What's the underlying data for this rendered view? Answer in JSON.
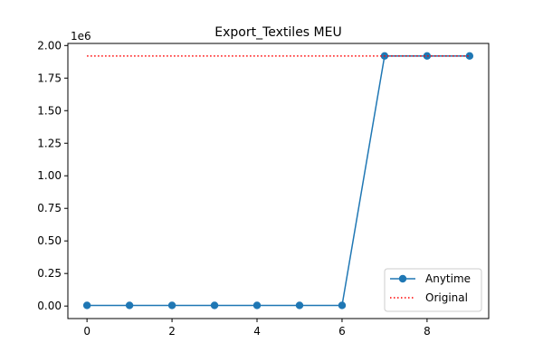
{
  "chart_data": {
    "type": "line",
    "title": "Export_Textiles MEU",
    "xlabel": "",
    "ylabel": "",
    "y_offset_label": "1e6",
    "xlim": [
      -0.45,
      9.45
    ],
    "ylim": [
      -0.096,
      2.016
    ],
    "x_ticks": [
      0,
      2,
      4,
      6,
      8
    ],
    "x_tick_labels": [
      "0",
      "2",
      "4",
      "6",
      "8"
    ],
    "y_ticks": [
      0,
      0.25,
      0.5,
      0.75,
      1.0,
      1.25,
      1.5,
      1.75,
      2.0
    ],
    "y_tick_labels": [
      "0.00",
      "0.25",
      "0.50",
      "0.75",
      "1.00",
      "1.25",
      "1.50",
      "1.75",
      "2.00"
    ],
    "grid": false,
    "legend_position": "lower-right",
    "series": [
      {
        "name": "Anytime",
        "color": "#1f77b4",
        "style": "solid-with-markers",
        "x": [
          0,
          1,
          2,
          3,
          4,
          5,
          6,
          7,
          8,
          9
        ],
        "values": [
          0.005,
          0.005,
          0.005,
          0.005,
          0.005,
          0.005,
          0.005,
          1.92,
          1.92,
          1.92
        ]
      },
      {
        "name": "Original",
        "color": "#ff0000",
        "style": "dotted",
        "x": [
          0,
          9
        ],
        "values": [
          1.92,
          1.92
        ]
      }
    ]
  }
}
